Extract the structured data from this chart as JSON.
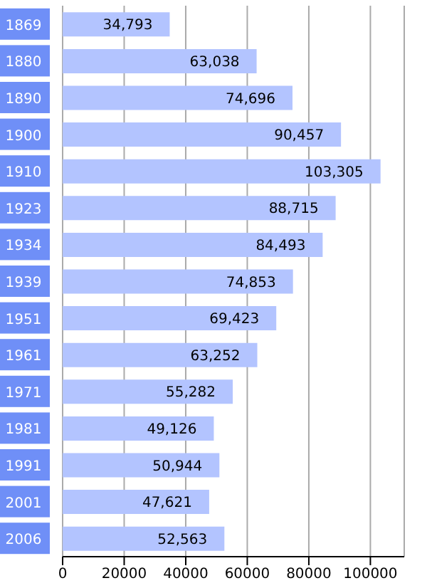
{
  "chart_data": {
    "type": "bar",
    "orientation": "horizontal",
    "categories": [
      "1869",
      "1880",
      "1890",
      "1900",
      "1910",
      "1923",
      "1934",
      "1939",
      "1951",
      "1961",
      "1971",
      "1981",
      "1991",
      "2001",
      "2006"
    ],
    "values": [
      34793,
      63038,
      74696,
      90457,
      103305,
      88715,
      84493,
      74853,
      69423,
      63252,
      55282,
      49126,
      50944,
      47621,
      52563
    ],
    "value_labels": [
      "34,793",
      "63,038",
      "74,696",
      "90,457",
      "103,305",
      "88,715",
      "84,493",
      "74,853",
      "69,423",
      "63,252",
      "55,282",
      "49,126",
      "50,944",
      "47,621",
      "52,563"
    ],
    "color": "#b3c4ff",
    "xlim": [
      0,
      111000
    ],
    "xticks": [
      0,
      20000,
      40000,
      60000,
      80000,
      100000
    ],
    "grid": "x"
  }
}
